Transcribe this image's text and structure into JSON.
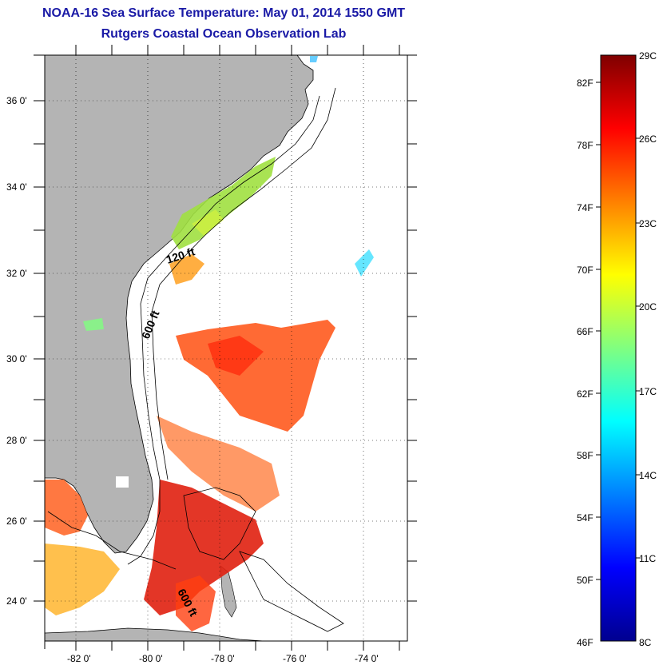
{
  "header": {
    "title": "NOAA-16 Sea Surface Temperature:  May 01, 2014 1550 GMT",
    "subtitle": "Rutgers Coastal Ocean Observation Lab"
  },
  "map": {
    "lat_ticks": [
      "36 0'",
      "34 0'",
      "32 0'",
      "30 0'",
      "28 0'",
      "26 0'",
      "24 0'"
    ],
    "lon_ticks": [
      "-82 0'",
      "-80 0'",
      "-78 0'",
      "-76 0'",
      "-74 0'"
    ],
    "contour_labels": [
      "120 ft",
      "600 ft",
      "600 ft"
    ],
    "land_color": "#b4b4b4"
  },
  "colorbar": {
    "fahrenheit_labels": [
      "82F",
      "78F",
      "74F",
      "70F",
      "66F",
      "62F",
      "58F",
      "54F",
      "50F",
      "46F"
    ],
    "celsius_labels": [
      "29C",
      "26C",
      "23C",
      "20C",
      "17C",
      "14C",
      "11C",
      "8C"
    ],
    "colors": [
      "#7f0000",
      "#ff0000",
      "#ff8000",
      "#ffff00",
      "#80ff80",
      "#00ffff",
      "#0080ff",
      "#0000ff",
      "#00008f"
    ]
  }
}
